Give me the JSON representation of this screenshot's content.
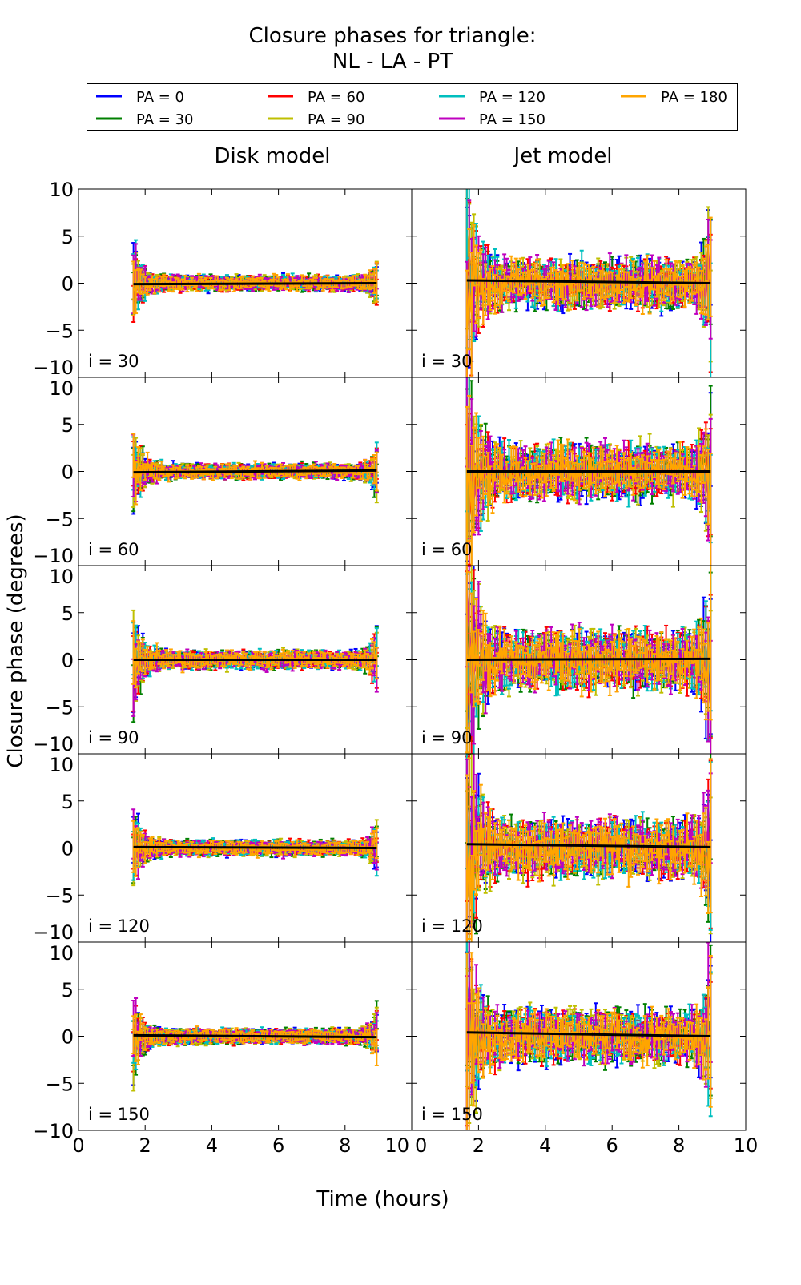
{
  "chart_data": {
    "type": "line",
    "title": "Closure phases for triangle:",
    "subtitle": "NL - LA - PT",
    "xlabel": "Time (hours)",
    "ylabel": "Closure phase (degrees)",
    "xlim": [
      0,
      10
    ],
    "ylim": [
      -10,
      10
    ],
    "xticks": [
      "0",
      "2",
      "4",
      "6",
      "8",
      "10"
    ],
    "yticks": [
      "10",
      "5",
      "0",
      "−5",
      "−10"
    ],
    "legend_placement": "top, above panels",
    "columns": [
      "Disk model",
      "Jet model"
    ],
    "rows": [
      "i = 30",
      "i = 60",
      "i = 90",
      "i = 120",
      "i = 150"
    ],
    "series": [
      {
        "name": "PA = 0",
        "color": "#0000ff"
      },
      {
        "name": "PA = 30",
        "color": "#008000"
      },
      {
        "name": "PA = 60",
        "color": "#ff0000"
      },
      {
        "name": "PA = 90",
        "color": "#bfbf00"
      },
      {
        "name": "PA = 120",
        "color": "#00bfbf"
      },
      {
        "name": "PA = 150",
        "color": "#bf00bf"
      },
      {
        "name": "PA = 180",
        "color": "#ffa500"
      }
    ],
    "time_range_hours": [
      1.65,
      8.95
    ],
    "panels": [
      {
        "model": "Disk model",
        "inclination": 30,
        "scatter_deg": 0.5,
        "model_line": [
          -0.1,
          0.0
        ]
      },
      {
        "model": "Jet model",
        "inclination": 30,
        "scatter_deg": 1.6,
        "model_line": [
          0.3,
          0.0
        ]
      },
      {
        "model": "Disk model",
        "inclination": 60,
        "scatter_deg": 0.5,
        "model_line": [
          -0.1,
          0.1
        ]
      },
      {
        "model": "Jet model",
        "inclination": 60,
        "scatter_deg": 1.8,
        "model_line": [
          0.0,
          0.0
        ]
      },
      {
        "model": "Disk model",
        "inclination": 90,
        "scatter_deg": 0.6,
        "model_line": [
          0.0,
          0.0
        ]
      },
      {
        "model": "Jet model",
        "inclination": 90,
        "scatter_deg": 2.0,
        "model_line": [
          0.0,
          0.1
        ]
      },
      {
        "model": "Disk model",
        "inclination": 120,
        "scatter_deg": 0.5,
        "model_line": [
          0.1,
          0.0
        ]
      },
      {
        "model": "Jet model",
        "inclination": 120,
        "scatter_deg": 1.9,
        "model_line": [
          0.4,
          0.1
        ]
      },
      {
        "model": "Disk model",
        "inclination": 150,
        "scatter_deg": 0.5,
        "model_line": [
          0.1,
          -0.1
        ]
      },
      {
        "model": "Jet model",
        "inclination": 150,
        "scatter_deg": 1.7,
        "model_line": [
          0.4,
          0.0
        ]
      }
    ]
  }
}
